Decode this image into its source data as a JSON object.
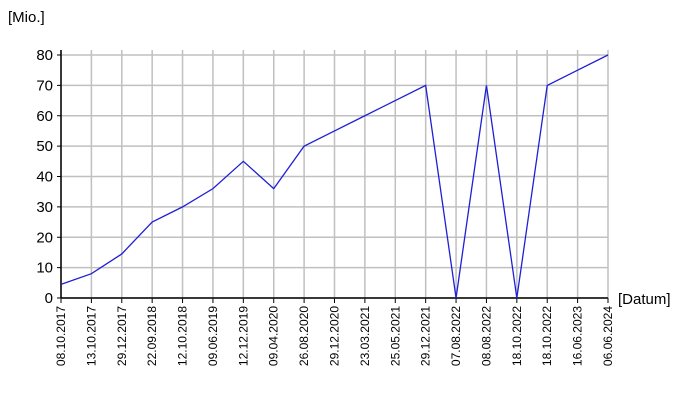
{
  "chart_data": {
    "type": "line",
    "y_label": "[Mio.]",
    "x_label": "[Datum]",
    "categories": [
      "08.10.2017",
      "13.10.2017",
      "29.12.2017",
      "22.09.2018",
      "12.10.2018",
      "09.06.2019",
      "12.12.2019",
      "09.04.2020",
      "26.08.2020",
      "29.12.2020",
      "23.03.2021",
      "25.05.2021",
      "29.12.2021",
      "07.08.2022",
      "08.08.2022",
      "18.10.2022",
      "18.10.2022",
      "16.06.2023",
      "06.06.2024"
    ],
    "values": [
      4.5,
      8,
      14.5,
      25,
      30,
      36,
      45,
      36,
      50,
      55,
      60,
      65,
      70,
      0,
      70,
      0,
      70,
      75,
      80
    ],
    "color": "#1f1fd6",
    "ylim": [
      0,
      80
    ],
    "yticks": [
      0,
      10,
      20,
      30,
      40,
      50,
      60,
      70,
      80
    ],
    "grid": true
  }
}
